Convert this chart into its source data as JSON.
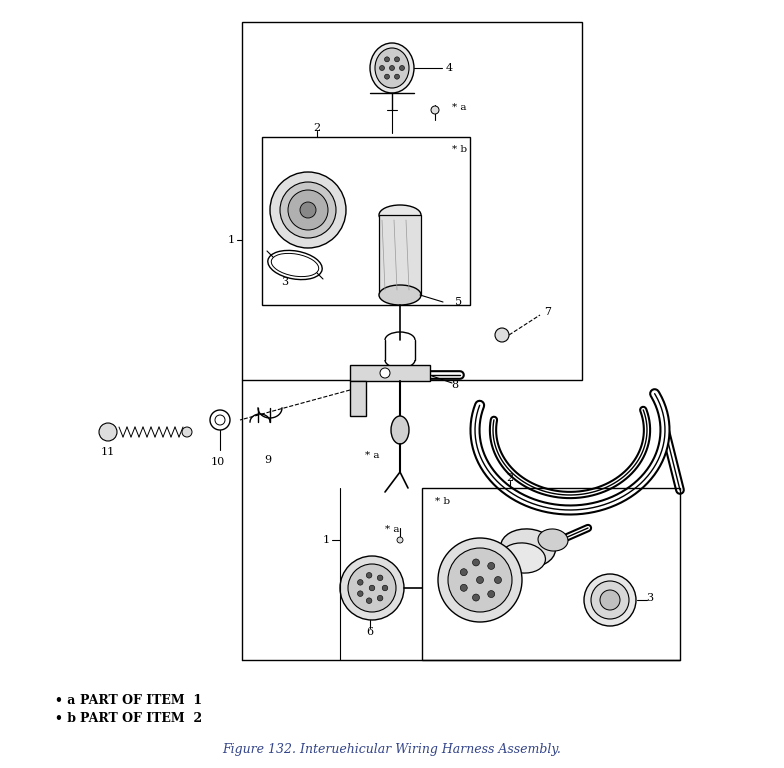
{
  "title": "Figure 132. Interuehicular Wiring Harness Assembly.",
  "legend_a": "* a  PART OF ITEM  1",
  "legend_b": "* b  PART OF ITEM  2",
  "fig_width": 7.84,
  "fig_height": 7.68,
  "dpi": 100
}
